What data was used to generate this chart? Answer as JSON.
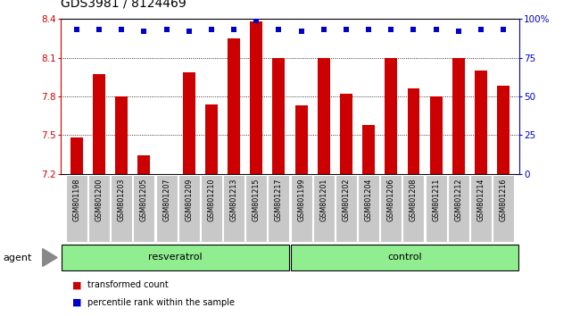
{
  "title": "GDS3981 / 8124469",
  "categories": [
    "GSM801198",
    "GSM801200",
    "GSM801203",
    "GSM801205",
    "GSM801207",
    "GSM801209",
    "GSM801210",
    "GSM801213",
    "GSM801215",
    "GSM801217",
    "GSM801199",
    "GSM801201",
    "GSM801202",
    "GSM801204",
    "GSM801206",
    "GSM801208",
    "GSM801211",
    "GSM801212",
    "GSM801214",
    "GSM801216"
  ],
  "bar_values": [
    7.48,
    7.97,
    7.8,
    7.34,
    7.085,
    7.99,
    7.74,
    8.25,
    8.38,
    8.1,
    7.73,
    8.1,
    7.82,
    7.58,
    8.1,
    7.86,
    7.8,
    8.1,
    8.0,
    7.88
  ],
  "percentile_values": [
    93,
    93,
    93,
    92,
    93,
    92,
    93,
    93,
    99,
    93,
    92,
    93,
    93,
    93,
    93,
    93,
    93,
    92,
    93,
    93
  ],
  "group_labels": [
    "resveratrol",
    "control"
  ],
  "group_sizes": [
    10,
    10
  ],
  "group_colors": [
    "#90ee90",
    "#90ee90"
  ],
  "bar_color": "#cc0000",
  "dot_color": "#0000cc",
  "ylim": [
    7.2,
    8.4
  ],
  "yticks": [
    7.2,
    7.5,
    7.8,
    8.1,
    8.4
  ],
  "right_yticks": [
    0,
    25,
    50,
    75,
    100
  ],
  "right_ylim": [
    0,
    100
  ],
  "agent_label": "agent",
  "xticklabel_bg": "#c8c8c8"
}
